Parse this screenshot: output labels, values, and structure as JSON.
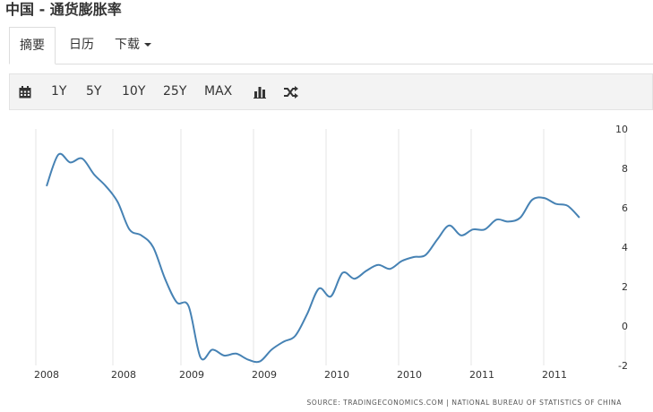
{
  "page": {
    "title": "中国 - 通货膨胀率"
  },
  "tabs": [
    {
      "label": "摘要",
      "active": true
    },
    {
      "label": "日历",
      "active": false
    },
    {
      "label": "下载",
      "active": false,
      "has_dropdown": true
    }
  ],
  "toolbar": {
    "calendar_icon": "calendar-icon",
    "ranges": [
      "1Y",
      "5Y",
      "10Y",
      "25Y",
      "MAX"
    ],
    "bar_icon": "bar-chart-icon",
    "shuffle_icon": "shuffle-icon"
  },
  "chart_data": {
    "type": "line",
    "title": "",
    "xlabel": "",
    "ylabel": "",
    "x_tick_labels": [
      "2008",
      "2008",
      "2009",
      "2009",
      "2010",
      "2010",
      "2011",
      "2011"
    ],
    "y_ticks": [
      -2,
      0,
      2,
      4,
      6,
      8,
      10
    ],
    "ylim": [
      -2,
      10
    ],
    "y_axis_side": "right",
    "grid": "vertical",
    "line_color": "#4682b4",
    "series": [
      {
        "name": "",
        "x": [
          "2008-01",
          "2008-02",
          "2008-03",
          "2008-04",
          "2008-05",
          "2008-06",
          "2008-07",
          "2008-08",
          "2008-09",
          "2008-10",
          "2008-11",
          "2008-12",
          "2009-01",
          "2009-02",
          "2009-03",
          "2009-04",
          "2009-05",
          "2009-06",
          "2009-07",
          "2009-08",
          "2009-09",
          "2009-10",
          "2009-11",
          "2009-12",
          "2010-01",
          "2010-02",
          "2010-03",
          "2010-04",
          "2010-05",
          "2010-06",
          "2010-07",
          "2010-08",
          "2010-09",
          "2010-10",
          "2010-11",
          "2010-12",
          "2011-01",
          "2011-02",
          "2011-03",
          "2011-04",
          "2011-05",
          "2011-06",
          "2011-07",
          "2011-08",
          "2011-09",
          "2011-10"
        ],
        "values": [
          7.1,
          8.7,
          8.3,
          8.5,
          7.7,
          7.1,
          6.3,
          4.9,
          4.6,
          4.0,
          2.4,
          1.2,
          1.0,
          -1.6,
          -1.2,
          -1.5,
          -1.4,
          -1.7,
          -1.8,
          -1.2,
          -0.8,
          -0.5,
          0.6,
          1.9,
          1.5,
          2.7,
          2.4,
          2.8,
          3.1,
          2.9,
          3.3,
          3.5,
          3.6,
          4.4,
          5.1,
          4.6,
          4.9,
          4.9,
          5.4,
          5.3,
          5.5,
          6.4,
          6.5,
          6.2,
          6.1,
          5.5
        ]
      }
    ],
    "last_value_note": "",
    "source": "SOURCE: TRADINGECONOMICS.COM  |  NATIONAL BUREAU OF STATISTICS OF CHINA"
  }
}
